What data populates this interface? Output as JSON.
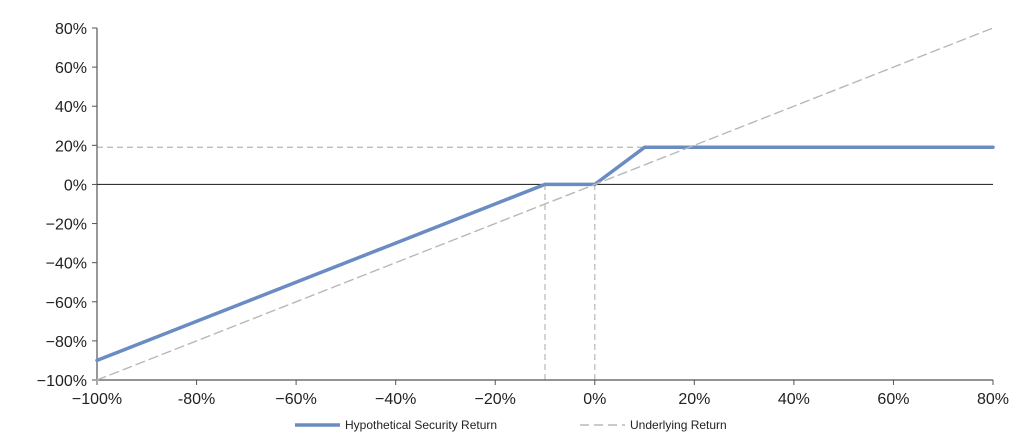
{
  "chart_data": {
    "type": "line",
    "title": "",
    "xlabel": "",
    "ylabel": "",
    "xlim": [
      -100,
      80
    ],
    "ylim": [
      -100,
      80
    ],
    "x_ticks": [
      -100,
      -80,
      -60,
      -40,
      -20,
      0,
      20,
      40,
      60,
      80
    ],
    "y_ticks": [
      -100,
      -80,
      -60,
      -40,
      -20,
      0,
      20,
      40,
      60,
      80
    ],
    "x_tick_labels": [
      "−100%",
      "-80%",
      "−60%",
      "−40%",
      "−20%",
      "0%",
      "20%",
      "40%",
      "60%",
      "80%"
    ],
    "y_tick_labels": [
      "−100%",
      "−80%",
      "−60%",
      "−40%",
      "−20%",
      "0%",
      "20%",
      "40%",
      "60%",
      "80%"
    ],
    "grid": false,
    "legend_position": "bottom",
    "series": [
      {
        "name": "Hypothetical Security Return",
        "color": "#6b8cc3",
        "style": "solid",
        "x": [
          -100,
          -10,
          0,
          10,
          80
        ],
        "y": [
          -90,
          0,
          0,
          19,
          19
        ]
      },
      {
        "name": "Underlying Return",
        "color": "#b8b8b8",
        "style": "dashed",
        "x": [
          -100,
          80
        ],
        "y": [
          -100,
          80
        ]
      }
    ],
    "reference_lines": [
      {
        "kind": "horizontal",
        "value": 19,
        "from_x": -100,
        "to_x": 80,
        "style": "dashed"
      },
      {
        "kind": "vertical",
        "value": -10,
        "from_y": -100,
        "to_y": 0,
        "style": "dashed"
      },
      {
        "kind": "vertical",
        "value": 0,
        "from_y": -100,
        "to_y": 0,
        "style": "dashed"
      }
    ]
  },
  "colors": {
    "axis": "#555555",
    "zero_line": "#333333",
    "reference": "#bdbdbd",
    "tick_text": "#222222"
  }
}
